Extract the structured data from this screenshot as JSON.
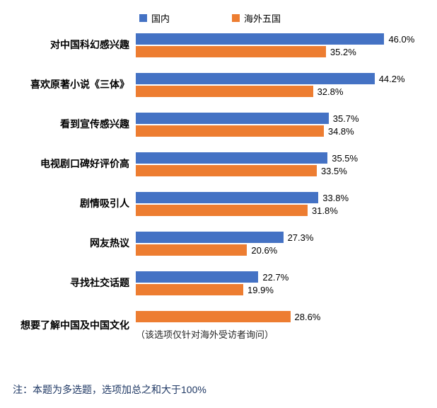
{
  "chart_data": {
    "type": "bar",
    "orientation": "horizontal",
    "title": "",
    "categories": [
      "对中国科幻感兴趣",
      "喜欢原著小说《三体》",
      "看到宣传感兴趣",
      "电视剧口碑好评价高",
      "剧情吸引人",
      "网友热议",
      "寻找社交话题",
      "想要了解中国及中国文化"
    ],
    "series": [
      {
        "name": "国内",
        "color": "#4472C4",
        "values": [
          46.0,
          44.2,
          35.7,
          35.5,
          33.8,
          27.3,
          22.7,
          null
        ]
      },
      {
        "name": "海外五国",
        "color": "#ED7D31",
        "values": [
          35.2,
          32.8,
          34.8,
          33.5,
          31.8,
          20.6,
          19.9,
          28.6
        ]
      }
    ],
    "value_suffix": "%",
    "xlim": [
      0,
      50
    ],
    "grid": false,
    "legend_position": "top",
    "annotation": {
      "category_index": 7,
      "text": "（该选项仅针对海外受访者询问）"
    },
    "note": "注：本题为多选题，选项加总之和大于100%"
  }
}
